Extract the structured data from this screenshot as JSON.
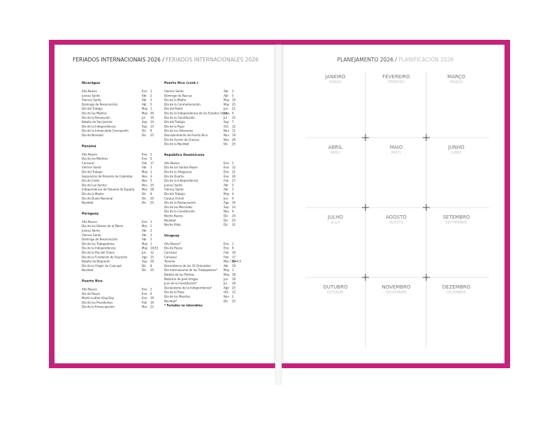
{
  "left": {
    "title_pt": "FERIADOS INTERNACIONAIS 2026 /",
    "title_es": "FERIADOS INTERNACIONALES 2026",
    "columns": [
      [
        {
          "heading": "Nicarágua",
          "rows": [
            [
              "Año Nuevo",
              "Ene",
              "1"
            ],
            [
              "Jueves Santo",
              "Abr",
              "2"
            ],
            [
              "Viernes Santo",
              "Abr",
              "3"
            ],
            [
              "Domingo de Resurrección",
              "Abr",
              "5"
            ],
            [
              "Día del Trabajo",
              "May",
              "1"
            ],
            [
              "Día de las Madres",
              "May",
              "30"
            ],
            [
              "Día de la Revolución",
              "Jul",
              "19"
            ],
            [
              "Batalla de San Jacinto",
              "Sep",
              "14"
            ],
            [
              "Día de la Independencia",
              "Sep",
              "15"
            ],
            [
              "Día de la Inmaculada Concepción",
              "Dic",
              "8"
            ],
            [
              "Día de Navidad",
              "Dic",
              "25"
            ]
          ]
        },
        {
          "heading": "Panamá",
          "rows": [
            [
              "Año Nuevo",
              "Ene",
              "1"
            ],
            [
              "Día de los Mártires",
              "Ene",
              "9"
            ],
            [
              "Carnaval",
              "Feb",
              "17"
            ],
            [
              "Viernes Santo",
              "Abr",
              "3"
            ],
            [
              "Día del Trabajo",
              "May",
              "1"
            ],
            [
              "Separación de Panamá de Colombia",
              "Nov",
              "3"
            ],
            [
              "Día de Colón",
              "Nov",
              "5"
            ],
            [
              "Día de Los Santos",
              "Nov",
              "10"
            ],
            [
              "Independencia de Panamá de España",
              "Nov",
              "28"
            ],
            [
              "Día de la Madre",
              "Dic",
              "8"
            ],
            [
              "Día de Duelo Nacional",
              "Dic",
              "20"
            ],
            [
              "Navidad",
              "Dic",
              "25"
            ]
          ]
        },
        {
          "heading": "Paraguay",
          "rows": [
            [
              "Año Nuevo",
              "Ene",
              "1"
            ],
            [
              "Día de los Héroes de la Patria",
              "Mar",
              "1"
            ],
            [
              "Jueves Santo",
              "Abr",
              "2"
            ],
            [
              "Viernes Santo",
              "Abr",
              "3"
            ],
            [
              "Domingo de Resurrección",
              "Abr",
              "5"
            ],
            [
              "Día de los Trabajadores",
              "May",
              "1"
            ],
            [
              "Día de la Independencia",
              "May",
              "14/15"
            ],
            [
              "Día de la Paz del Chaco",
              "Jun",
              "12"
            ],
            [
              "Día de la Fundación de Asunción",
              "Ago",
              "15"
            ],
            [
              "Batalla de Boquerón",
              "Sep",
              "29"
            ],
            [
              "Día de la Virgen de Caacupé",
              "Dic",
              "8"
            ],
            [
              "Navidad",
              "Dic",
              "25"
            ]
          ]
        },
        {
          "heading": "Puerto Rico",
          "rows": [
            [
              "Año Nuevo",
              "Ene",
              "1"
            ],
            [
              "Día de Reyes",
              "Ene",
              "6"
            ],
            [
              "Martin Luther King Day",
              "Ene",
              "19"
            ],
            [
              "Día de los Presidentes",
              "Feb",
              "16"
            ],
            [
              "Día de la Emancipación",
              "Mar",
              "22"
            ]
          ]
        }
      ],
      [
        {
          "heading": "Puerto Rico (cont.)",
          "rows": [
            [
              "Viernes Santo",
              "Abr",
              "3"
            ],
            [
              "Domingo de Pascua",
              "Abr",
              "5"
            ],
            [
              "Día de la Madre",
              "May",
              "10"
            ],
            [
              "Día de la Conmemoración",
              "May",
              "25"
            ],
            [
              "Día del Padre",
              "Jun",
              "21"
            ],
            [
              "Día de la Independencia de los Estados Unidos",
              "Jul",
              "4"
            ],
            [
              "Día de la Constitución",
              "Jul",
              "25"
            ],
            [
              "Día del Trabajo",
              "Sep",
              "7"
            ],
            [
              "Día de la Raza",
              "Oct",
              "12"
            ],
            [
              "Día de los Veteranos",
              "Nov",
              "11"
            ],
            [
              "Descubrimiento de Puerto Rico",
              "Nov",
              "19"
            ],
            [
              "Día de Acción de Gracias",
              "Nov",
              "26"
            ],
            [
              "Día de la Navidad",
              "Dic",
              "25"
            ]
          ]
        },
        {
          "heading": "República Dominicana",
          "rows": [
            [
              "Año Nuevo",
              "Ene",
              "1"
            ],
            [
              "Día de los Santos Reyes",
              "Ene",
              "12"
            ],
            [
              "Día de la Altagracia",
              "Ene",
              "21"
            ],
            [
              "Día de Duarte",
              "Ene",
              "26"
            ],
            [
              "Día de la Independencia",
              "Feb",
              "27"
            ],
            [
              "Jueves Santo",
              "Abr",
              "2"
            ],
            [
              "Viernes Santo",
              "Abr",
              "3"
            ],
            [
              "Día del Trabajo",
              "May",
              "4"
            ],
            [
              "Corpus Christi",
              "Jun",
              "4"
            ],
            [
              "Día de la Restauración",
              "Ago",
              "16"
            ],
            [
              "Día de las Mercedes",
              "Sep",
              "24"
            ],
            [
              "Día de la Constitución",
              "Nov",
              "9"
            ],
            [
              "Noche Buena",
              "Dic",
              "24"
            ],
            [
              "Navidad",
              "Dic",
              "25"
            ],
            [
              "Noche Vieja",
              "Dic",
              "31"
            ]
          ]
        },
        {
          "heading": "Uruguay",
          "rows": [
            [
              "Año Nuevo*",
              "Ene",
              "1"
            ],
            [
              "Día de Reyes",
              "Ene",
              "6"
            ],
            [
              "Carnaval",
              "Feb",
              "16"
            ],
            [
              "Carnaval",
              "Feb",
              "17"
            ],
            [
              "Turismo",
              "Mar / Abr",
              "29-4-5"
            ],
            [
              "Desembarco de los 33 Orientales",
              "Abr",
              "19"
            ],
            [
              "Día Internacional de los Trabajadores*",
              "May",
              "1"
            ],
            [
              "Batalla de las Piedras",
              "May",
              "18"
            ],
            [
              "Natalicio de José Artigas",
              "Jun",
              "19"
            ],
            [
              "Jura de la Constitución*",
              "Jul",
              "18"
            ],
            [
              "Declaratoria de la Independencia*",
              "Ago",
              "25"
            ],
            [
              "Día de la Raza",
              "Oct",
              "12"
            ],
            [
              "Día de los Muertos",
              "Nov",
              "2"
            ],
            [
              "Navidad*",
              "Dic",
              "25"
            ]
          ],
          "note": "* Feriados no laborables"
        }
      ]
    ]
  },
  "right": {
    "title_pt": "PLANEJAMENTO 2026 /",
    "title_es": "PLANIFICACIÓN 2026",
    "months": [
      {
        "pt": "JANEIRO",
        "es": "ENERO"
      },
      {
        "pt": "FEVEREIRO",
        "es": "FEBRERO"
      },
      {
        "pt": "MARÇO",
        "es": "MARZO"
      },
      {
        "pt": "ABRIL",
        "es": "ABRIL"
      },
      {
        "pt": "MAIO",
        "es": "MAYO"
      },
      {
        "pt": "JUNHO",
        "es": "JUNIO"
      },
      {
        "pt": "JULHO",
        "es": "JULIO"
      },
      {
        "pt": "AGOSTO",
        "es": "AGOSTO"
      },
      {
        "pt": "SETEMBRO",
        "es": "SEPTIEMBRE"
      },
      {
        "pt": "OUTUBRO",
        "es": "OCTUBRE"
      },
      {
        "pt": "NOVEMBRO",
        "es": "NOVIEMBRE"
      },
      {
        "pt": "DEZEMBRO",
        "es": "DICIEMBRE"
      }
    ]
  }
}
